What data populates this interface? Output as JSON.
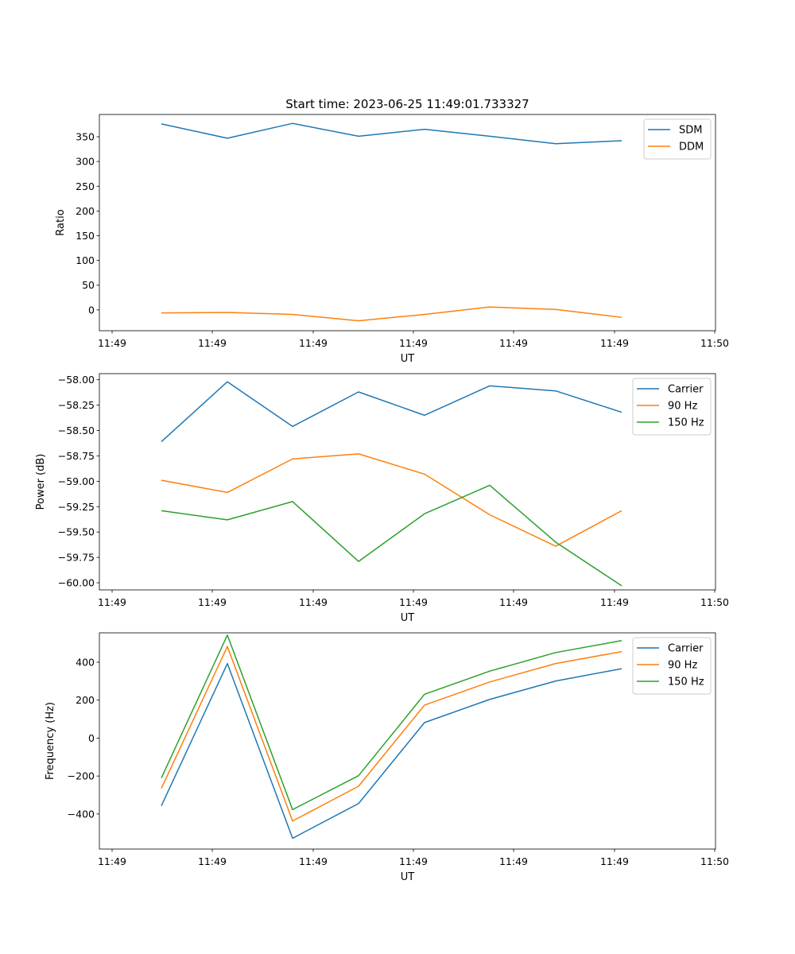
{
  "title": "Start time: 2023-06-25 11:49:01.733327",
  "colors": {
    "c0": "#1f77b4",
    "c1": "#ff7f0e",
    "c2": "#2ca02c"
  },
  "chart_data": [
    {
      "type": "line",
      "xlabel": "UT",
      "ylabel": "Ratio",
      "x_tick_labels": [
        "11:49",
        "11:49",
        "11:49",
        "11:49",
        "11:49",
        "11:49",
        "11:49",
        "11:50"
      ],
      "ylim": [
        -42,
        395
      ],
      "yticks": [
        0,
        50,
        100,
        150,
        200,
        250,
        300,
        350
      ],
      "legend_position": "upper right",
      "series": [
        {
          "name": "SDM",
          "color": "#1f77b4",
          "values": [
            376,
            347,
            377,
            351,
            365,
            351,
            336,
            342
          ]
        },
        {
          "name": "DDM",
          "color": "#ff7f0e",
          "values": [
            -6,
            -5,
            -9,
            -22,
            -9,
            6,
            1,
            -15
          ]
        }
      ]
    },
    {
      "type": "line",
      "xlabel": "UT",
      "ylabel": "Power (dB)",
      "x_tick_labels": [
        "11:49",
        "11:49",
        "11:49",
        "11:49",
        "11:49",
        "11:49",
        "11:49",
        "11:50"
      ],
      "ylim": [
        -60.07,
        -57.94
      ],
      "yticks": [
        -60.0,
        -59.75,
        -59.5,
        -59.25,
        -59.0,
        -58.75,
        -58.5,
        -58.25,
        -58.0
      ],
      "ytick_labels": [
        "−60.00",
        "−59.75",
        "−59.50",
        "−59.25",
        "−59.00",
        "−58.75",
        "−58.50",
        "−58.25",
        "−58.00"
      ],
      "legend_position": "upper right",
      "series": [
        {
          "name": "Carrier",
          "color": "#1f77b4",
          "values": [
            -58.61,
            -58.02,
            -58.46,
            -58.12,
            -58.35,
            -58.06,
            -58.11,
            -58.32
          ]
        },
        {
          "name": "90 Hz",
          "color": "#ff7f0e",
          "values": [
            -58.99,
            -59.11,
            -58.78,
            -58.73,
            -58.93,
            -59.33,
            -59.64,
            -59.29
          ]
        },
        {
          "name": "150 Hz",
          "color": "#2ca02c",
          "values": [
            -59.29,
            -59.38,
            -59.2,
            -59.79,
            -59.32,
            -59.04,
            -59.6,
            -60.03
          ]
        }
      ]
    },
    {
      "type": "line",
      "xlabel": "UT",
      "ylabel": "Frequency (Hz)",
      "x_tick_labels": [
        "11:49",
        "11:49",
        "11:49",
        "11:49",
        "11:49",
        "11:49",
        "11:49",
        "11:50"
      ],
      "ylim": [
        -585,
        555
      ],
      "yticks": [
        -400,
        -200,
        0,
        200,
        400
      ],
      "ytick_labels": [
        "−400",
        "−200",
        "0",
        "200",
        "400"
      ],
      "legend_position": "upper right",
      "series": [
        {
          "name": "Carrier",
          "color": "#1f77b4",
          "values": [
            -357,
            393,
            -528,
            -345,
            82,
            204,
            301,
            366
          ]
        },
        {
          "name": "90 Hz",
          "color": "#ff7f0e",
          "values": [
            -265,
            483,
            -437,
            -254,
            174,
            296,
            393,
            456
          ]
        },
        {
          "name": "150 Hz",
          "color": "#2ca02c",
          "values": [
            -210,
            543,
            -377,
            -198,
            231,
            353,
            451,
            514
          ]
        }
      ]
    }
  ]
}
